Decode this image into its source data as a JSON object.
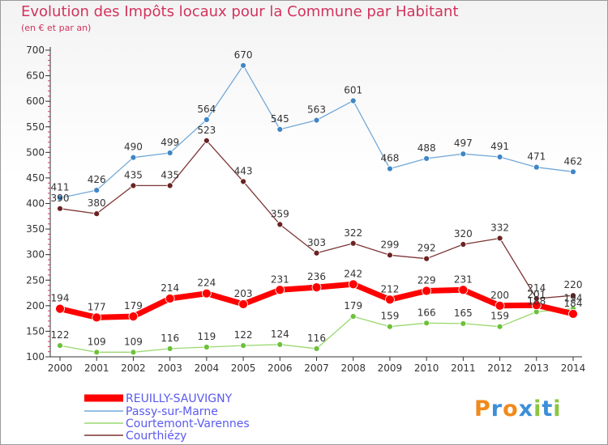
{
  "title": "Evolution des Impôts locaux pour la Commune par Habitant",
  "subtitle": "(en € et par an)",
  "logo": {
    "letters": [
      "P",
      "r",
      "o",
      "x",
      "i",
      "t",
      "i"
    ],
    "colors": [
      "#f08a1a",
      "#3c8fd8",
      "#f08a1a",
      "#3c8fd8",
      "#8cc63f",
      "#3c8fd8",
      "#8cc63f"
    ]
  },
  "chart_data": {
    "type": "line",
    "x": [
      2000,
      2001,
      2002,
      2003,
      2004,
      2005,
      2006,
      2007,
      2008,
      2009,
      2010,
      2011,
      2012,
      2013,
      2014
    ],
    "ylim": [
      100,
      700
    ],
    "yticks": [
      100,
      150,
      200,
      250,
      300,
      350,
      400,
      450,
      500,
      550,
      600,
      650,
      700
    ],
    "grid": false,
    "legend_position": "bottom-left",
    "series": [
      {
        "name": "REUILLY-SAUVIGNY",
        "color": "#ff0000",
        "point_color": "#ff0000",
        "width": 7,
        "values": [
          194,
          177,
          179,
          214,
          224,
          203,
          231,
          236,
          242,
          212,
          229,
          231,
          200,
          201,
          184
        ],
        "labels": [
          "194",
          "177",
          "179",
          "214",
          "224",
          "203",
          "231",
          "236",
          "242",
          "212",
          "229",
          "231",
          "200",
          "201",
          "184"
        ]
      },
      {
        "name": "Passy-sur-Marne",
        "color": "#74a9d8",
        "point_color": "#3f86c7",
        "width": 1.3,
        "values": [
          411,
          426,
          490,
          499,
          564,
          670,
          545,
          563,
          601,
          468,
          488,
          497,
          491,
          471,
          462
        ],
        "labels": [
          "411",
          "426",
          "490",
          "499",
          "564",
          "670",
          "545",
          "563",
          "601",
          "468",
          "488",
          "497",
          "491",
          "471",
          "462"
        ]
      },
      {
        "name": "Courtemont-Varennes",
        "color": "#9ad870",
        "point_color": "#6cc13a",
        "width": 1.3,
        "values": [
          122,
          109,
          109,
          116,
          119,
          122,
          124,
          116,
          179,
          159,
          166,
          165,
          159,
          188,
          194
        ],
        "labels": [
          "122",
          "109",
          "109",
          "116",
          "119",
          "122",
          "124",
          "116",
          "179",
          "159",
          "166",
          "165",
          "159",
          "188",
          "194"
        ]
      },
      {
        "name": "Courthiézy",
        "color": "#7d3535",
        "point_color": "#6b2222",
        "width": 1.3,
        "values": [
          390,
          380,
          435,
          435,
          523,
          443,
          359,
          303,
          322,
          299,
          292,
          320,
          332,
          214,
          220
        ],
        "labels": [
          "390",
          "380",
          "435",
          "435",
          "523",
          "443",
          "359",
          "303",
          "322",
          "299",
          "292",
          "320",
          "332",
          "214",
          "220"
        ]
      }
    ]
  }
}
